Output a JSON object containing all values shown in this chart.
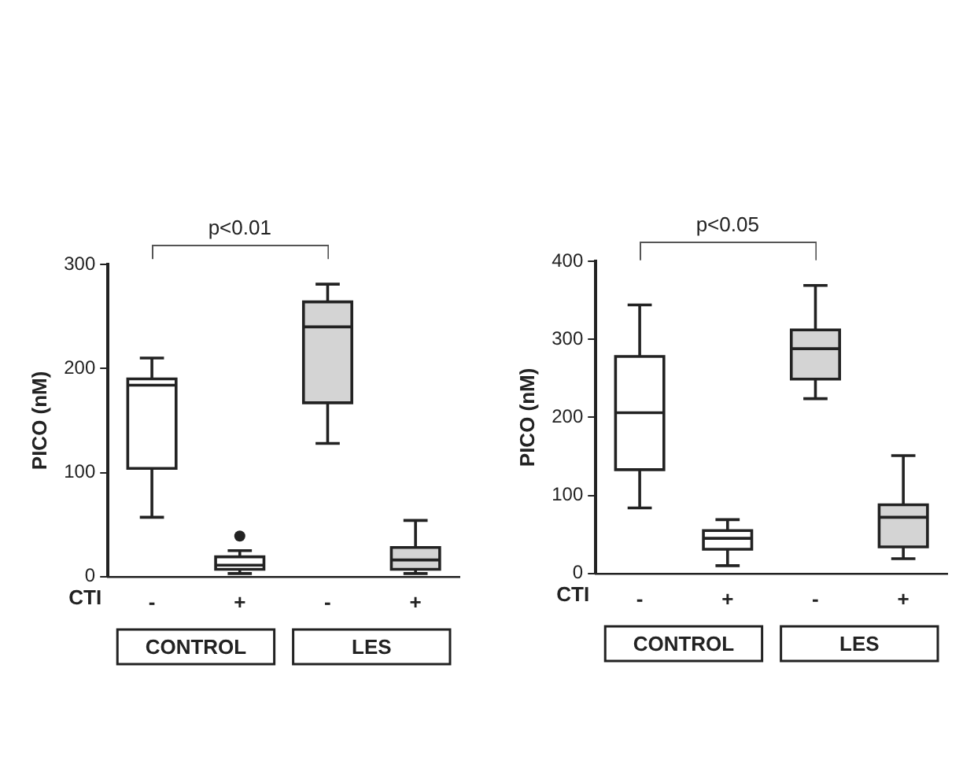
{
  "chart_data": [
    {
      "type": "box",
      "categories": [
        "-",
        "+",
        "-",
        "+"
      ],
      "ylabel": "PICO (nM)",
      "ylim": [
        0,
        300
      ],
      "yticks": [
        0,
        100,
        200,
        300
      ],
      "grid": false,
      "colors": [
        "#ffffff",
        "#ffffff",
        "#d4d4d4",
        "#d4d4d4"
      ],
      "boxes": [
        {
          "low": 57,
          "q1": 104,
          "median": 184,
          "q3": 190,
          "high": 210
        },
        {
          "low": 3,
          "q1": 7,
          "median": 11,
          "q3": 19,
          "high": 25,
          "outliers": [
            39
          ]
        },
        {
          "low": 128,
          "q1": 167,
          "median": 240,
          "q3": 264,
          "high": 281
        },
        {
          "low": 3,
          "q1": 7,
          "median": 16,
          "q3": 28,
          "high": 54
        }
      ],
      "annotations": [
        "p<0.01",
        "CTI",
        "CONTROL",
        "LES"
      ]
    },
    {
      "type": "box",
      "categories": [
        "-",
        "+",
        "-",
        "+"
      ],
      "ylabel": "PICO (nM)",
      "ylim": [
        0,
        400
      ],
      "yticks": [
        0,
        100,
        200,
        300,
        400
      ],
      "grid": false,
      "colors": [
        "#ffffff",
        "#ffffff",
        "#d4d4d4",
        "#d4d4d4"
      ],
      "boxes": [
        {
          "low": 84,
          "q1": 133,
          "median": 206,
          "q3": 278,
          "high": 344
        },
        {
          "low": 10,
          "q1": 31,
          "median": 45,
          "q3": 55,
          "high": 69
        },
        {
          "low": 224,
          "q1": 249,
          "median": 288,
          "q3": 312,
          "high": 369
        },
        {
          "low": 19,
          "q1": 34,
          "median": 72,
          "q3": 88,
          "high": 151
        }
      ],
      "annotations": [
        "p<0.05",
        "CTI",
        "CONTROL",
        "LES"
      ]
    }
  ]
}
